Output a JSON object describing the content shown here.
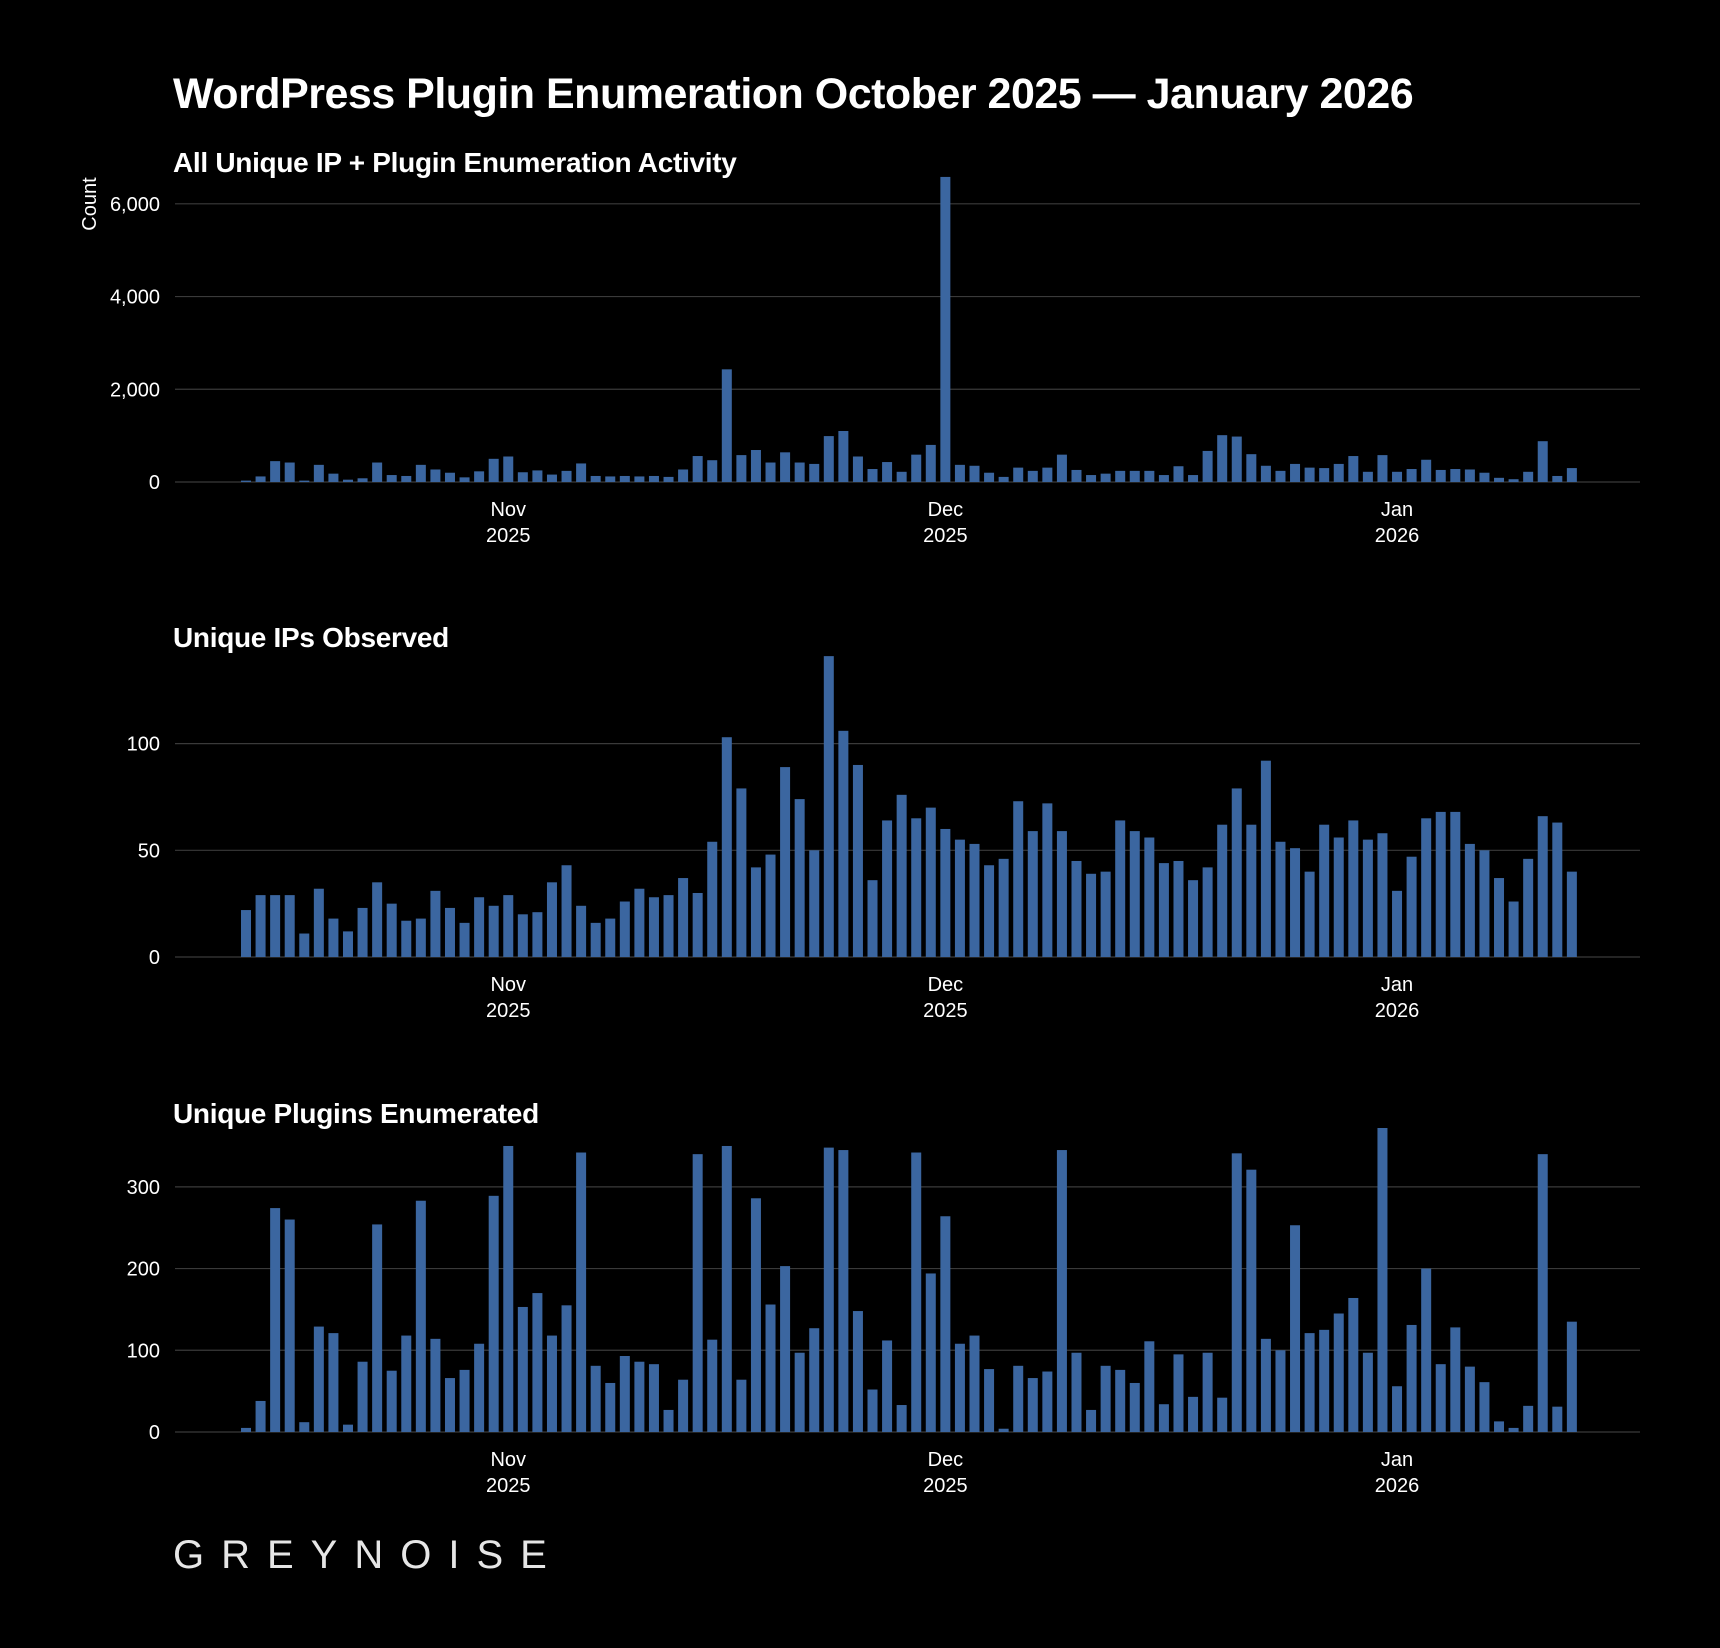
{
  "title": "WordPress Plugin Enumeration October 2025 — January 2026",
  "logo_text": "GREYNOISE",
  "colors": {
    "bar": "#3b66a0",
    "grid": "#3a3a3a",
    "background": "#000000",
    "text": "#ffffff"
  },
  "chart_data": [
    {
      "type": "bar",
      "title": "All Unique IP + Plugin Enumeration Activity",
      "xlabel": "",
      "ylabel": "Count",
      "ylim": [
        0,
        6600
      ],
      "yticks": [
        0,
        2000,
        4000,
        6000
      ],
      "ytick_labels": [
        "0",
        "2,000",
        "4,000",
        "6,000"
      ],
      "x_start_date": "2025-10-14",
      "xticks": [
        {
          "date": "2025-11-01",
          "line1": "Nov",
          "line2": "2025"
        },
        {
          "date": "2025-12-01",
          "line1": "Dec",
          "line2": "2025"
        },
        {
          "date": "2026-01-01",
          "line1": "Jan",
          "line2": "2026"
        }
      ],
      "values": [
        30,
        120,
        450,
        420,
        30,
        370,
        180,
        50,
        80,
        420,
        150,
        130,
        370,
        270,
        200,
        100,
        230,
        500,
        550,
        210,
        250,
        160,
        240,
        400,
        130,
        120,
        130,
        120,
        130,
        110,
        270,
        560,
        470,
        2430,
        580,
        690,
        420,
        640,
        420,
        390,
        990,
        1100,
        550,
        280,
        430,
        220,
        590,
        800,
        6580,
        370,
        350,
        200,
        110,
        310,
        240,
        310,
        590,
        260,
        150,
        180,
        240,
        240,
        240,
        150,
        340,
        150,
        670,
        1010,
        980,
        600,
        350,
        240,
        390,
        310,
        300,
        390,
        560,
        220,
        580,
        220,
        280,
        480,
        260,
        280,
        270,
        200,
        90,
        60,
        220,
        880,
        130,
        300
      ]
    },
    {
      "type": "bar",
      "title": "Unique IPs Observed",
      "xlabel": "",
      "ylabel": "",
      "ylim": [
        0,
        142
      ],
      "yticks": [
        0,
        50,
        100
      ],
      "ytick_labels": [
        "0",
        "50",
        "100"
      ],
      "x_start_date": "2025-10-14",
      "xticks": [
        {
          "date": "2025-11-01",
          "line1": "Nov",
          "line2": "2025"
        },
        {
          "date": "2025-12-01",
          "line1": "Dec",
          "line2": "2025"
        },
        {
          "date": "2026-01-01",
          "line1": "Jan",
          "line2": "2026"
        }
      ],
      "values": [
        22,
        29,
        29,
        29,
        11,
        32,
        18,
        12,
        23,
        35,
        25,
        17,
        18,
        31,
        23,
        16,
        28,
        24,
        29,
        20,
        21,
        35,
        43,
        24,
        16,
        18,
        26,
        32,
        28,
        29,
        37,
        30,
        54,
        103,
        79,
        42,
        48,
        89,
        74,
        50,
        141,
        106,
        90,
        36,
        64,
        76,
        65,
        70,
        60,
        55,
        53,
        43,
        46,
        73,
        59,
        72,
        59,
        45,
        39,
        40,
        64,
        59,
        56,
        44,
        45,
        36,
        42,
        62,
        79,
        62,
        92,
        54,
        51,
        40,
        62,
        56,
        64,
        55,
        58,
        31,
        47,
        65,
        68,
        68,
        53,
        50,
        37,
        26,
        46,
        66,
        63,
        40
      ]
    },
    {
      "type": "bar",
      "title": "Unique Plugins Enumerated",
      "xlabel": "",
      "ylabel": "",
      "ylim": [
        0,
        372
      ],
      "yticks": [
        0,
        100,
        200,
        300
      ],
      "ytick_labels": [
        "0",
        "100",
        "200",
        "300"
      ],
      "x_start_date": "2025-10-14",
      "xticks": [
        {
          "date": "2025-11-01",
          "line1": "Nov",
          "line2": "2025"
        },
        {
          "date": "2025-12-01",
          "line1": "Dec",
          "line2": "2025"
        },
        {
          "date": "2026-01-01",
          "line1": "Jan",
          "line2": "2026"
        }
      ],
      "values": [
        5,
        38,
        274,
        260,
        12,
        129,
        121,
        9,
        86,
        254,
        75,
        118,
        283,
        114,
        66,
        76,
        108,
        289,
        350,
        153,
        170,
        118,
        155,
        342,
        81,
        60,
        93,
        86,
        83,
        27,
        64,
        340,
        113,
        350,
        64,
        286,
        156,
        203,
        97,
        127,
        348,
        345,
        148,
        52,
        112,
        33,
        342,
        194,
        264,
        108,
        118,
        77,
        4,
        81,
        66,
        74,
        345,
        97,
        27,
        81,
        76,
        60,
        111,
        34,
        95,
        43,
        97,
        42,
        341,
        321,
        114,
        100,
        253,
        121,
        125,
        145,
        164,
        97,
        372,
        56,
        131,
        200,
        83,
        128,
        80,
        61,
        13,
        5,
        32,
        340,
        31,
        135
      ]
    }
  ]
}
